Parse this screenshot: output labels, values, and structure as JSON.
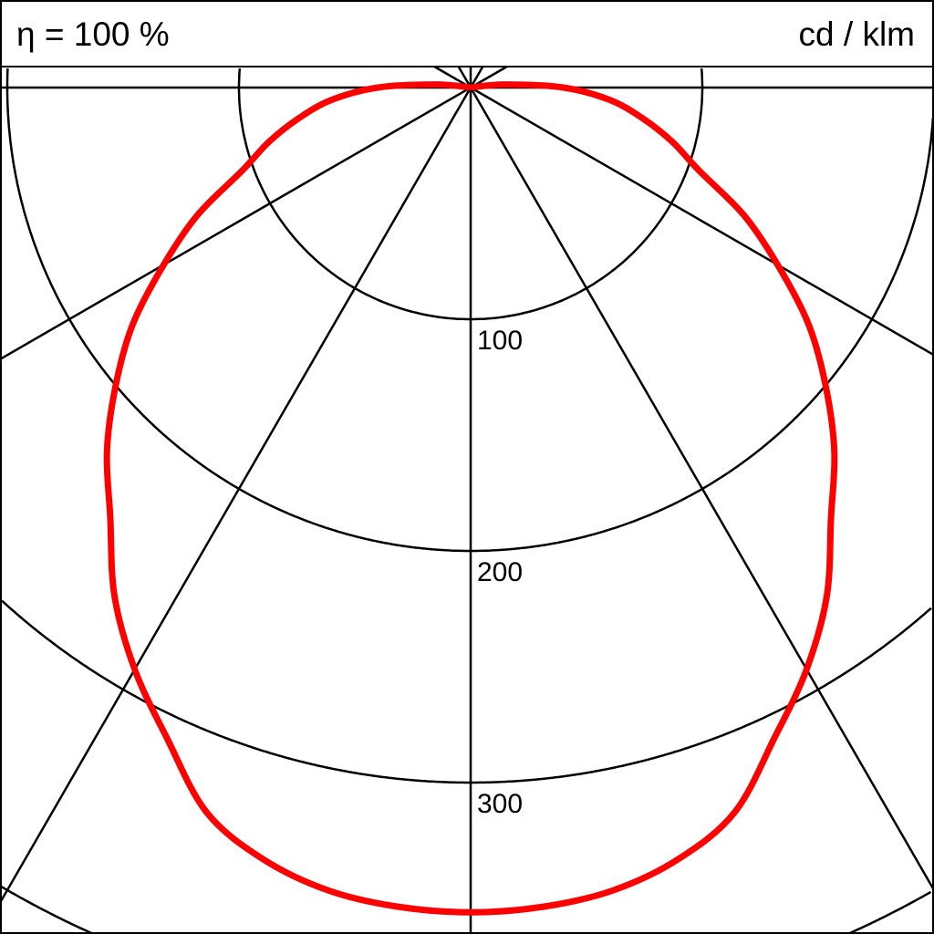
{
  "chart_data": {
    "type": "polar",
    "efficiency_label": "η = 100 %",
    "unit_label": "cd / klm",
    "radial_ticks": [
      100,
      200,
      300,
      400
    ],
    "radial_tick_labels": [
      "100",
      "200",
      "300"
    ],
    "angle_step_deg": 30,
    "rlim": [
      0,
      400
    ],
    "grid": true,
    "curve_color": "#ff0000",
    "series": [
      {
        "angles_deg": [
          0,
          5,
          10,
          15,
          20,
          25,
          30,
          35,
          40,
          45,
          50,
          55,
          60,
          65,
          70,
          75,
          80,
          85,
          90,
          95,
          100
        ],
        "values": [
          356,
          355,
          352,
          345,
          333,
          310,
          290,
          268,
          242,
          222,
          200,
          178,
          153,
          130,
          105,
          90,
          75,
          60,
          40,
          15,
          0
        ]
      }
    ]
  }
}
